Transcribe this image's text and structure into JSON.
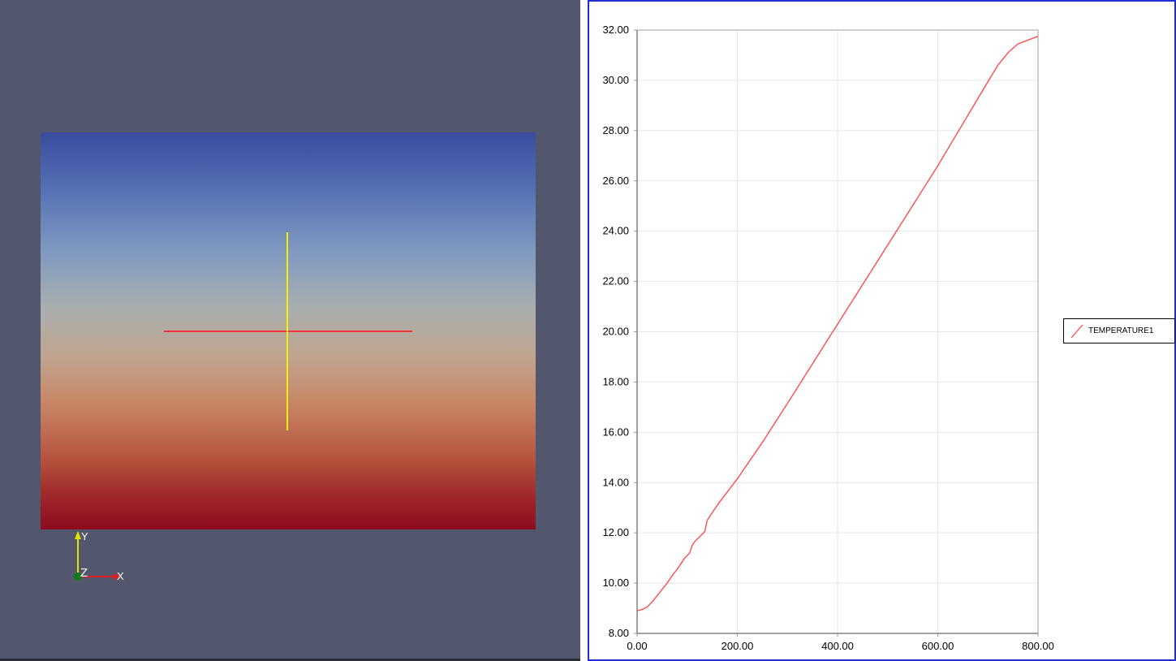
{
  "render_view": {
    "plane_colormap": [
      "#3a4c9f",
      "#a8aeb0",
      "#8d0c20"
    ],
    "probe_line_color": "#ff3030",
    "probe_vertical_color": "#f4f000",
    "axes": {
      "x_label": "X",
      "y_label": "Y",
      "z_label": "Z"
    }
  },
  "chart_data": {
    "type": "line",
    "xlim": [
      0,
      800
    ],
    "ylim": [
      8,
      32
    ],
    "x_ticks": [
      "0.00",
      "200.00",
      "400.00",
      "600.00",
      "800.00"
    ],
    "y_ticks": [
      "8.00",
      "10.00",
      "12.00",
      "14.00",
      "16.00",
      "18.00",
      "20.00",
      "22.00",
      "24.00",
      "26.00",
      "28.00",
      "30.00",
      "32.00"
    ],
    "grid": true,
    "legend_position": "right",
    "series": [
      {
        "name": "TEMPERATURE1",
        "color": "#ff4b4b",
        "x": [
          0,
          10,
          20,
          30,
          40,
          50,
          60,
          70,
          80,
          90,
          95,
          100,
          105,
          110,
          115,
          120,
          130,
          135,
          140,
          145,
          160,
          200,
          250,
          300,
          400,
          500,
          600,
          700,
          720,
          740,
          760,
          780,
          800
        ],
        "y": [
          8.9,
          8.95,
          9.05,
          9.25,
          9.5,
          9.75,
          10.0,
          10.3,
          10.55,
          10.85,
          11.0,
          11.1,
          11.2,
          11.5,
          11.65,
          11.75,
          11.95,
          12.05,
          12.5,
          12.65,
          13.1,
          14.15,
          15.6,
          17.15,
          20.3,
          23.45,
          26.6,
          29.95,
          30.6,
          31.1,
          31.45,
          31.6,
          31.75
        ]
      }
    ]
  }
}
